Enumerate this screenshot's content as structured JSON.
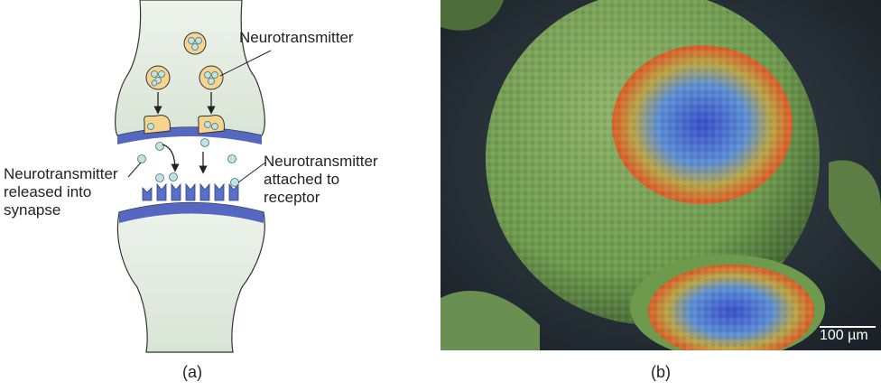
{
  "panel_a": {
    "labels": {
      "neurotransmitter": "Neurotransmitter",
      "released": [
        "Neurotransmitter",
        "released into",
        "synapse"
      ],
      "attached": [
        "Neurotransmitter",
        "attached to",
        "receptor"
      ]
    },
    "caption": "(a)",
    "colors": {
      "neuron_fill": "#e1ebe0",
      "membrane": "#5567c0",
      "vesicle": "#f5d490",
      "molecule": "#bfe3e3"
    }
  },
  "panel_b": {
    "scale_label": "100 µm",
    "caption": "(b)",
    "colors": {
      "sphere": "#6e9a4e",
      "outer_ring": "#d9642c",
      "inner": "#5a7ad6"
    }
  }
}
